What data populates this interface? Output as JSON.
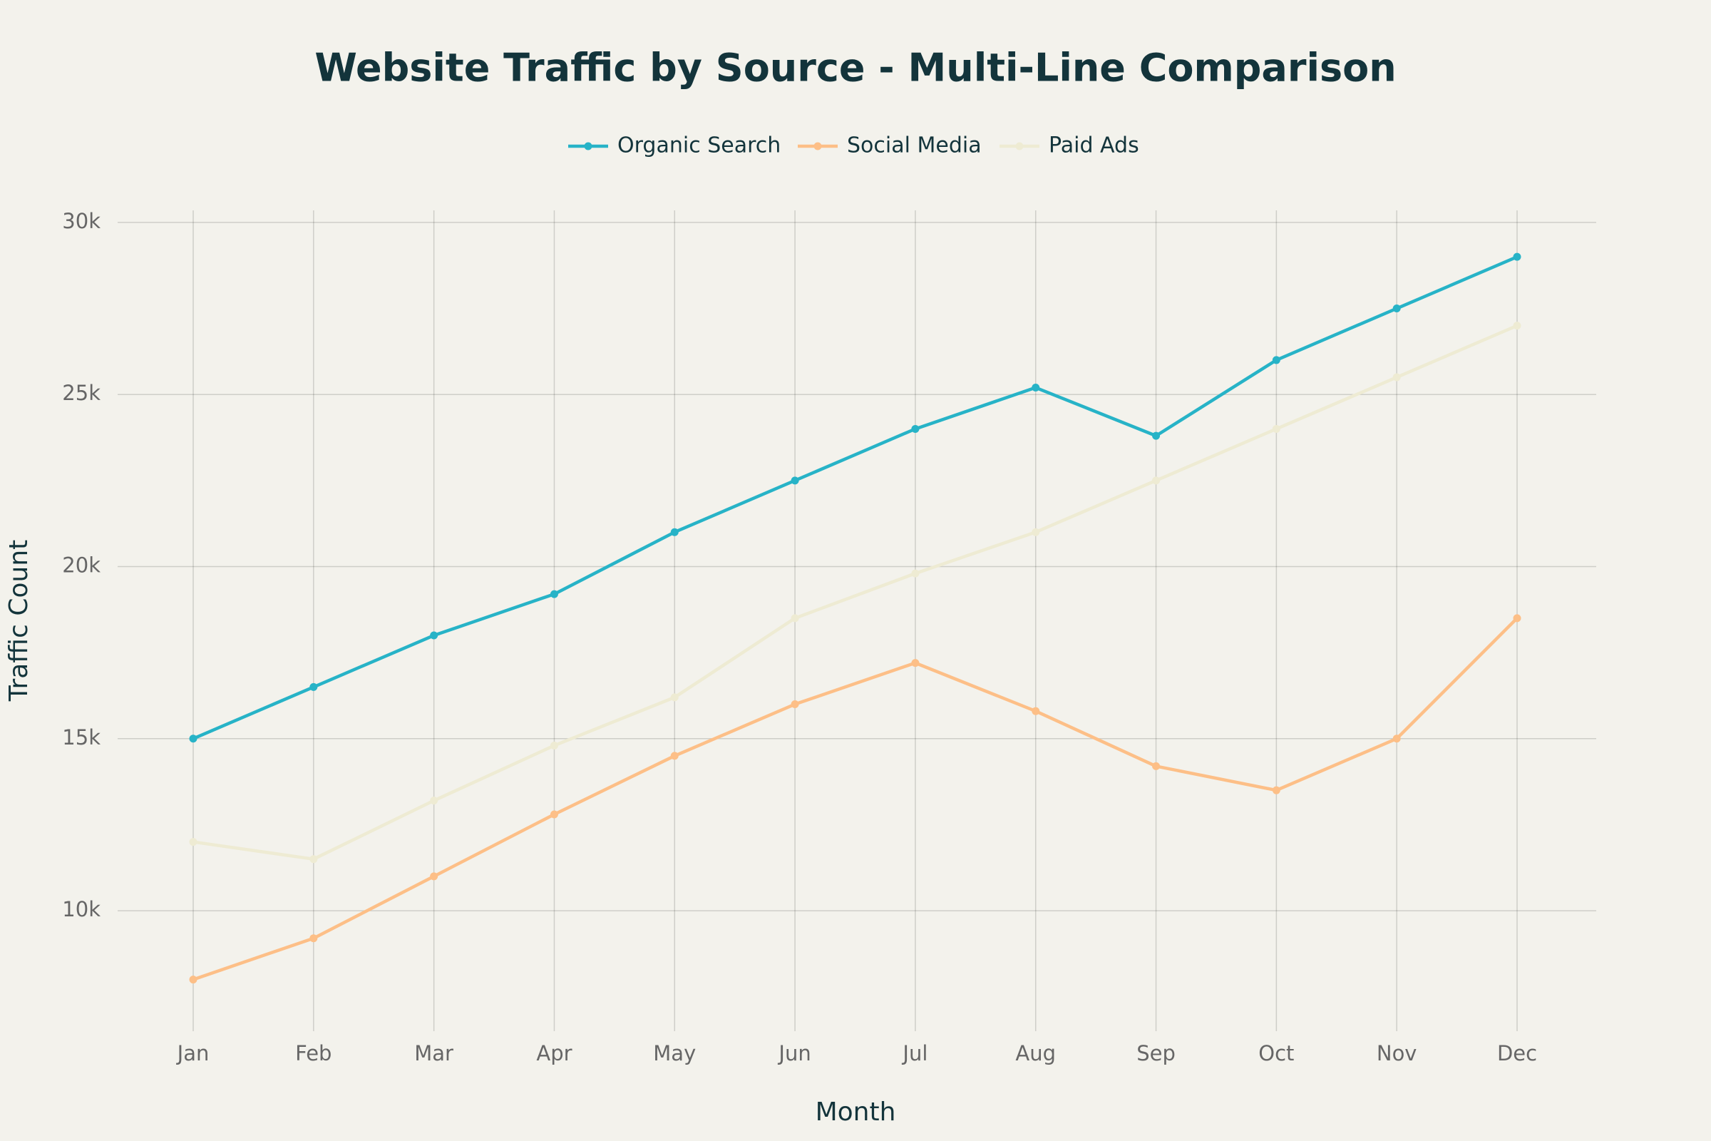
{
  "chart_data": {
    "type": "line",
    "title": "Website Traffic by Source - Multi-Line Comparison",
    "x_label": "Month",
    "y_label": "Traffic Count",
    "categories": [
      "Jan",
      "Feb",
      "Mar",
      "Apr",
      "May",
      "Jun",
      "Jul",
      "Aug",
      "Sep",
      "Oct",
      "Nov",
      "Dec"
    ],
    "series": [
      {
        "name": "Organic Search",
        "color": "#27b3c7",
        "values": [
          15000,
          16500,
          18000,
          19200,
          21000,
          22500,
          24000,
          25200,
          23800,
          26000,
          27500,
          29000
        ]
      },
      {
        "name": "Social Media",
        "color": "#fdbf87",
        "values": [
          8000,
          9200,
          11000,
          12800,
          14500,
          16000,
          17200,
          15800,
          14200,
          13500,
          15000,
          18500
        ]
      },
      {
        "name": "Paid Ads",
        "color": "#eeebd3",
        "values": [
          12000,
          11500,
          13200,
          14800,
          16200,
          18500,
          19800,
          21000,
          22500,
          24000,
          25500,
          27000
        ]
      }
    ],
    "ylim": [
      6500,
      30350
    ],
    "yticks": [
      {
        "value": 10000,
        "label": "10k"
      },
      {
        "value": 15000,
        "label": "15k"
      },
      {
        "value": 20000,
        "label": "20k"
      },
      {
        "value": 25000,
        "label": "25k"
      },
      {
        "value": 30000,
        "label": "30k"
      }
    ],
    "grid": true
  }
}
